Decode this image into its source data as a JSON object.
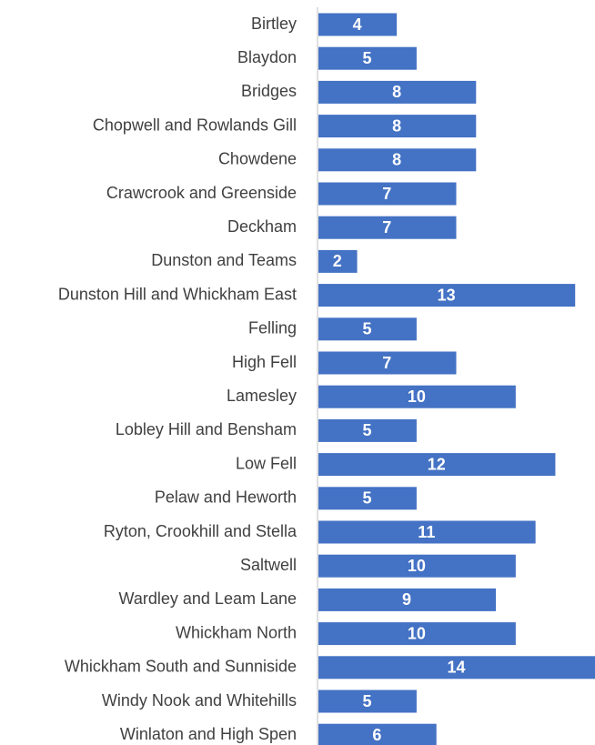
{
  "chart_data": {
    "type": "bar",
    "orientation": "horizontal",
    "categories": [
      "Birtley",
      "Blaydon",
      "Bridges",
      "Chopwell and Rowlands Gill",
      "Chowdene",
      "Crawcrook and Greenside",
      "Deckham",
      "Dunston and Teams",
      "Dunston Hill and Whickham East",
      "Felling",
      "High Fell",
      "Lamesley",
      "Lobley Hill and Bensham",
      "Low Fell",
      "Pelaw and Heworth",
      "Ryton, Crookhill and Stella",
      "Saltwell",
      "Wardley and Leam Lane",
      "Whickham North",
      "Whickham South and Sunniside",
      "Windy Nook and Whitehills",
      "Winlaton and High Spen"
    ],
    "values": [
      4,
      5,
      8,
      8,
      8,
      7,
      7,
      2,
      13,
      5,
      7,
      10,
      5,
      12,
      5,
      11,
      10,
      9,
      10,
      14,
      5,
      6
    ],
    "color": "#4472c4"
  }
}
